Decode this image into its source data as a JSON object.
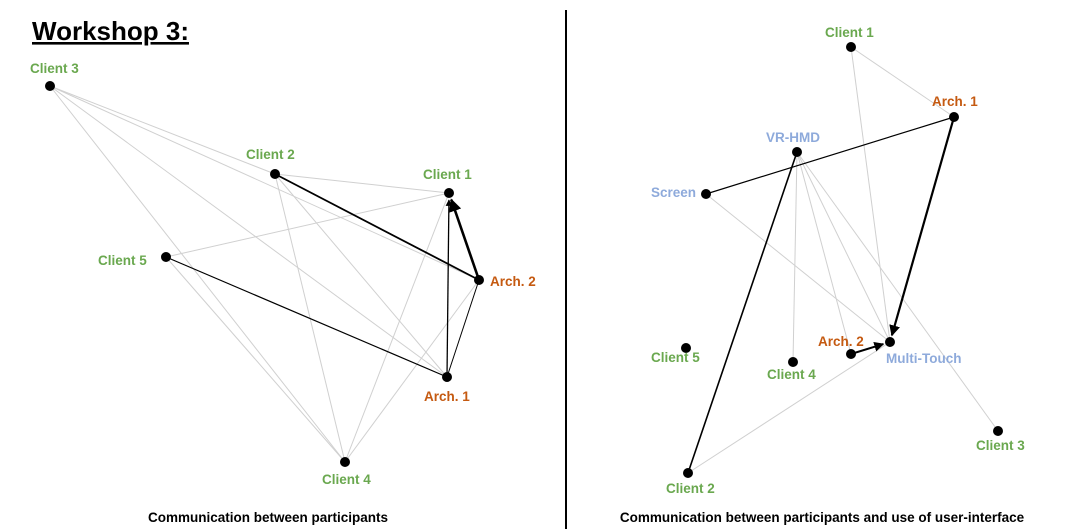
{
  "title": "Workshop 3:",
  "colors": {
    "client": "#6aa84f",
    "architect": "#c55a11",
    "interface": "#8eaadb",
    "faint_edge": "#d0d0d0",
    "strong_edge": "#000000",
    "divider": "#000000"
  },
  "left_panel": {
    "caption": "Communication between participants",
    "nodes": [
      {
        "id": "client3",
        "label": "Client 3",
        "role": "client"
      },
      {
        "id": "client2",
        "label": "Client 2",
        "role": "client"
      },
      {
        "id": "client1",
        "label": "Client 1",
        "role": "client"
      },
      {
        "id": "client5",
        "label": "Client 5",
        "role": "client"
      },
      {
        "id": "arch2",
        "label": "Arch. 2",
        "role": "architect"
      },
      {
        "id": "arch1",
        "label": "Arch. 1",
        "role": "architect"
      },
      {
        "id": "client4",
        "label": "Client 4",
        "role": "client"
      }
    ],
    "edges": [
      {
        "from": "client3",
        "to": "client2",
        "strength": "faint"
      },
      {
        "from": "client3",
        "to": "arch1",
        "strength": "faint"
      },
      {
        "from": "client3",
        "to": "client4",
        "strength": "faint"
      },
      {
        "from": "client3",
        "to": "arch2",
        "strength": "faint"
      },
      {
        "from": "client2",
        "to": "client1",
        "strength": "faint"
      },
      {
        "from": "client2",
        "to": "arch1",
        "strength": "faint"
      },
      {
        "from": "client2",
        "to": "client4",
        "strength": "faint"
      },
      {
        "from": "client5",
        "to": "client1",
        "strength": "faint"
      },
      {
        "from": "client5",
        "to": "client4",
        "strength": "faint"
      },
      {
        "from": "client1",
        "to": "client4",
        "strength": "faint"
      },
      {
        "from": "arch2",
        "to": "client4",
        "strength": "faint"
      },
      {
        "from": "client2",
        "to": "arch2",
        "strength": "strong",
        "width": 1.8
      },
      {
        "from": "client5",
        "to": "arch1",
        "strength": "strong",
        "width": 1.2
      },
      {
        "from": "arch1",
        "to": "client1",
        "strength": "strong",
        "width": 1.3,
        "arrow": true
      },
      {
        "from": "arch2",
        "to": "client1",
        "strength": "strong",
        "width": 2.6,
        "arrow": true
      },
      {
        "from": "arch1",
        "to": "arch2",
        "strength": "strong",
        "width": 1.0
      }
    ]
  },
  "right_panel": {
    "caption": "Communication between participants and use of user-interface",
    "nodes": [
      {
        "id": "r_client1",
        "label": "Client 1",
        "role": "client"
      },
      {
        "id": "r_arch1",
        "label": "Arch. 1",
        "role": "architect"
      },
      {
        "id": "r_vrhmd",
        "label": "VR-HMD",
        "role": "interface"
      },
      {
        "id": "r_screen",
        "label": "Screen",
        "role": "interface"
      },
      {
        "id": "r_client5",
        "label": "Client 5",
        "role": "client"
      },
      {
        "id": "r_client4",
        "label": "Client 4",
        "role": "client"
      },
      {
        "id": "r_arch2",
        "label": "Arch. 2",
        "role": "architect"
      },
      {
        "id": "r_multitouch",
        "label": "Multi-Touch",
        "role": "interface"
      },
      {
        "id": "r_client3",
        "label": "Client 3",
        "role": "client"
      },
      {
        "id": "r_client2",
        "label": "Client 2",
        "role": "client"
      }
    ],
    "edges": [
      {
        "from": "r_client1",
        "to": "r_arch1",
        "strength": "faint"
      },
      {
        "from": "r_client1",
        "to": "r_multitouch",
        "strength": "faint"
      },
      {
        "from": "r_vrhmd",
        "to": "r_client4",
        "strength": "faint"
      },
      {
        "from": "r_vrhmd",
        "to": "r_arch2",
        "strength": "faint"
      },
      {
        "from": "r_vrhmd",
        "to": "r_multitouch",
        "strength": "faint"
      },
      {
        "from": "r_vrhmd",
        "to": "r_client3",
        "strength": "faint"
      },
      {
        "from": "r_screen",
        "to": "r_multitouch",
        "strength": "faint"
      },
      {
        "from": "r_client2",
        "to": "r_multitouch",
        "strength": "faint"
      },
      {
        "from": "r_screen",
        "to": "r_arch1",
        "strength": "strong",
        "width": 1.2
      },
      {
        "from": "r_client2",
        "to": "r_vrhmd",
        "strength": "strong",
        "width": 1.6
      },
      {
        "from": "r_arch1",
        "to": "r_multitouch",
        "strength": "strong",
        "width": 2.2,
        "arrow": true
      },
      {
        "from": "r_arch2",
        "to": "r_multitouch",
        "strength": "strong",
        "width": 2.0,
        "arrow": true
      }
    ]
  }
}
